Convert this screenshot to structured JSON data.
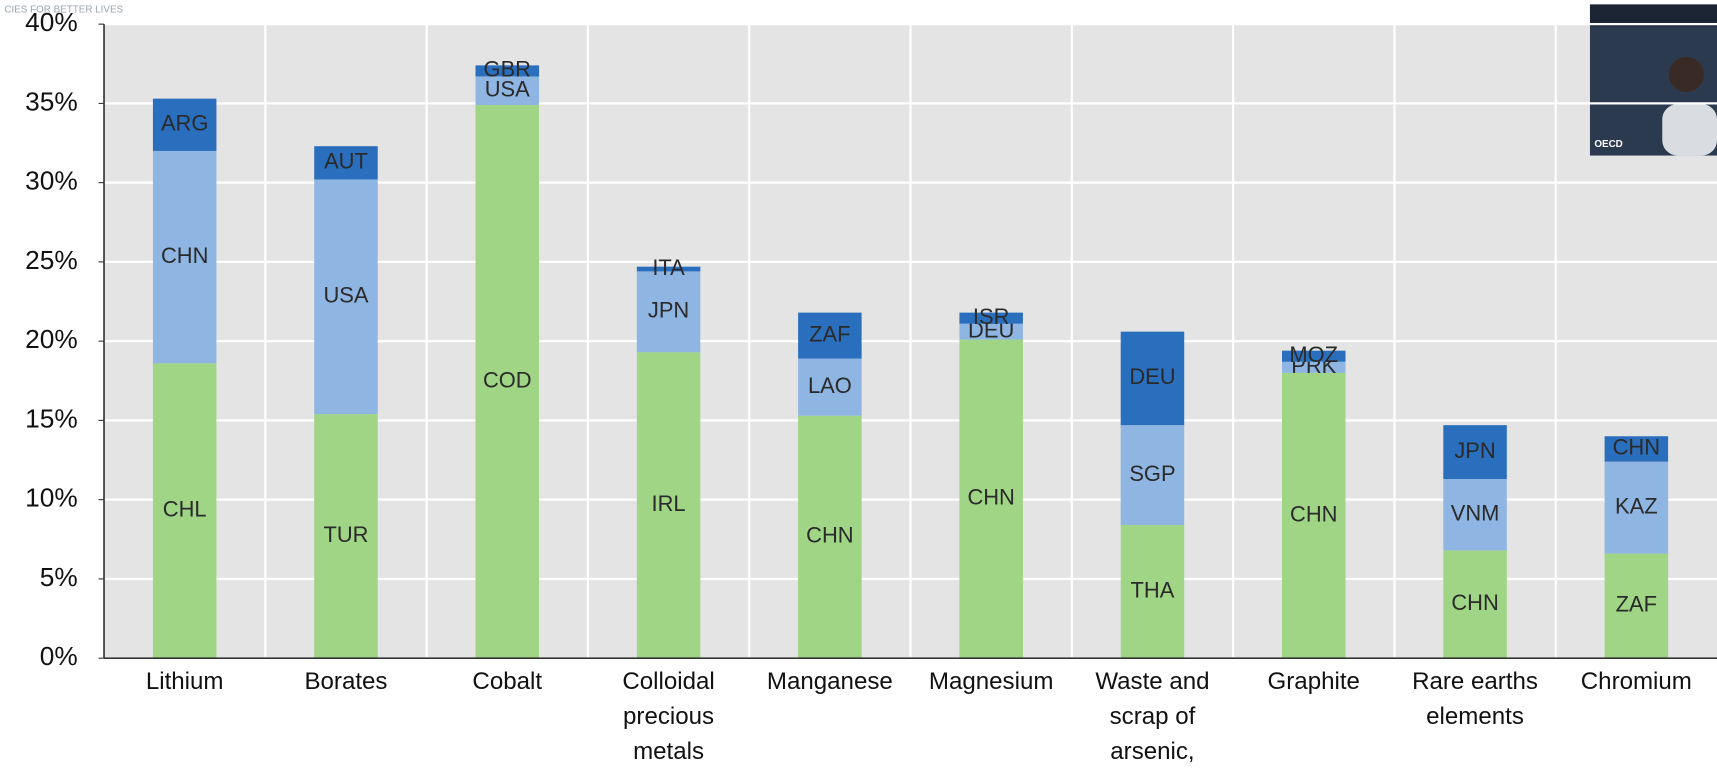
{
  "header_text": "CIES FOR BETTER LIVES",
  "webcam_label": "OECD",
  "chart_data": {
    "type": "stacked_bar",
    "categories": [
      "Lithium",
      "Borates",
      "Cobalt",
      "Colloidal precious metals",
      "Manganese",
      "Magnesium",
      "Waste and scrap of arsenic,",
      "Graphite",
      "Rare earths elements",
      "Chromium"
    ],
    "series": [
      {
        "color": "#9fd585",
        "values": [
          18.6,
          15.4,
          34.9,
          19.3,
          15.3,
          20.1,
          8.4,
          18.0,
          6.8,
          6.6
        ],
        "segment_labels": [
          "CHL",
          "TUR",
          "COD",
          "IRL",
          "CHN",
          "CHN",
          "THA",
          "CHN",
          "CHN",
          "ZAF"
        ]
      },
      {
        "color": "#8fb5e3",
        "values": [
          13.4,
          14.8,
          1.8,
          5.1,
          3.6,
          1.0,
          6.3,
          0.7,
          4.5,
          5.8
        ],
        "segment_labels": [
          "CHN",
          "USA",
          "USA",
          "JPN",
          "LAO",
          "DEU",
          "SGP",
          "PRK",
          "VNM",
          "KAZ"
        ]
      },
      {
        "color": "#2a6fbd",
        "values": [
          3.3,
          2.1,
          0.7,
          0.3,
          2.9,
          0.7,
          5.9,
          0.7,
          3.4,
          1.6
        ],
        "segment_labels": [
          "ARG",
          "AUT",
          "GBR",
          "ITA",
          "ZAF",
          "ISR",
          "DEU",
          "MOZ",
          "JPN",
          "CHN"
        ]
      }
    ],
    "ylim": [
      0,
      40
    ],
    "yticks": [
      {
        "value": 0,
        "label": "0%"
      },
      {
        "value": 5,
        "label": "5%"
      },
      {
        "value": 10,
        "label": "10%"
      },
      {
        "value": 15,
        "label": "15%"
      },
      {
        "value": 20,
        "label": "20%"
      },
      {
        "value": 25,
        "label": "25%"
      },
      {
        "value": 30,
        "label": "30%"
      },
      {
        "value": 35,
        "label": "35%"
      },
      {
        "value": 40,
        "label": "40%"
      }
    ],
    "grid": true
  }
}
